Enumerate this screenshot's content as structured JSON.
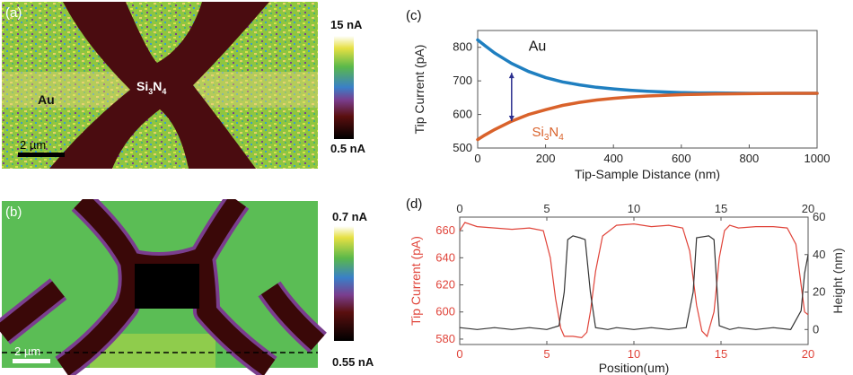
{
  "panels": {
    "a": {
      "label": "(a)",
      "material_au": "Au",
      "material_si3n4_main": "Si",
      "material_si3n4_sub3": "3",
      "material_n": "N",
      "material_si3n4_sub4": "4",
      "scale_bar": "2 µm",
      "colorbar_max": "15 nA",
      "colorbar_min": "0.5 nA"
    },
    "b": {
      "label": "(b)",
      "scale_bar": "2 µm",
      "colorbar_max": "0.7 nA",
      "colorbar_min": "0.55 nA"
    },
    "c": {
      "label": "(c)"
    },
    "d": {
      "label": "(d)"
    }
  },
  "colors": {
    "au_curve": "#1f7fc0",
    "si3n4_curve": "#d9622b",
    "current_line": "#e0443a",
    "height_line": "#333333",
    "arrow": "#2b2f8f"
  },
  "chart_data": [
    {
      "type": "line",
      "panel": "c",
      "xlabel": "Tip-Sample Distance (nm)",
      "ylabel": "Tip Current (pA)",
      "xlim": [
        0,
        1000
      ],
      "ylim": [
        500,
        850
      ],
      "xticks": [
        0,
        200,
        400,
        600,
        800,
        1000
      ],
      "yticks": [
        500,
        600,
        700,
        800
      ],
      "grid": false,
      "series": [
        {
          "name": "Au",
          "color": "#1f7fc0",
          "x": [
            0,
            20,
            50,
            100,
            150,
            200,
            250,
            300,
            350,
            400,
            450,
            500,
            550,
            600,
            650,
            700,
            800,
            900,
            1000
          ],
          "y": [
            822,
            806,
            783,
            752,
            728,
            710,
            697,
            688,
            681,
            676,
            672,
            669,
            667,
            665,
            664,
            664,
            663,
            663,
            663
          ]
        },
        {
          "name": "Si3N4",
          "color": "#d9622b",
          "x": [
            0,
            20,
            50,
            100,
            150,
            200,
            250,
            300,
            350,
            400,
            450,
            500,
            550,
            600,
            650,
            700,
            800,
            900,
            1000
          ],
          "y": [
            525,
            538,
            555,
            580,
            600,
            614,
            627,
            636,
            643,
            648,
            652,
            655,
            657,
            659,
            660,
            661,
            662,
            663,
            663
          ]
        }
      ],
      "annotations": {
        "au_label": "Au",
        "si_label_main": "Si",
        "si_label_sub3": "3",
        "si_label_n": "N",
        "si_label_sub4": "4",
        "arrow_x": 100,
        "arrow_y_top": 724,
        "arrow_y_bottom": 580
      }
    },
    {
      "type": "line",
      "panel": "d",
      "xlabel": "Position(um)",
      "ylabel_left": "Tip Current (pA)",
      "ylabel_right": "Height (nm)",
      "xlim": [
        0,
        20
      ],
      "ylim_left": [
        576,
        670
      ],
      "ylim_right": [
        -8,
        60
      ],
      "xticks": [
        0,
        5,
        10,
        15,
        20
      ],
      "yticks_left": [
        580,
        600,
        620,
        640,
        660
      ],
      "yticks_right": [
        0,
        20,
        40,
        60
      ],
      "series": [
        {
          "name": "Tip Current (pA)",
          "axis": "left",
          "color": "#e0443a",
          "x": [
            0,
            0.3,
            1,
            2,
            3,
            4,
            4.8,
            5.2,
            5.5,
            5.8,
            6.0,
            6.5,
            7.0,
            7.3,
            7.5,
            7.8,
            8.2,
            9,
            10,
            11,
            12,
            12.8,
            13.2,
            13.6,
            13.9,
            14.2,
            14.6,
            14.9,
            15.2,
            15.5,
            16,
            17,
            18,
            18.8,
            19.3,
            19.6,
            19.8,
            20
          ],
          "y": [
            660,
            666,
            663,
            662,
            661,
            662,
            660,
            640,
            610,
            588,
            582,
            582,
            581,
            585,
            600,
            630,
            656,
            664,
            665,
            663,
            664,
            662,
            645,
            605,
            586,
            582,
            600,
            640,
            660,
            664,
            662,
            663,
            663,
            662,
            650,
            620,
            600,
            598
          ]
        },
        {
          "name": "Height (nm)",
          "axis": "right",
          "color": "#333333",
          "x": [
            0,
            1,
            2,
            3,
            4,
            5,
            5.7,
            6.0,
            6.2,
            6.5,
            6.9,
            7.2,
            7.5,
            7.8,
            8.5,
            9,
            10,
            11,
            12,
            13,
            13.4,
            13.6,
            14.3,
            14.6,
            14.9,
            15.5,
            16,
            17,
            18,
            19,
            19.6,
            19.8,
            20
          ],
          "y": [
            1,
            0,
            1,
            0,
            1,
            0,
            2,
            20,
            48,
            50,
            49,
            48,
            20,
            1,
            0,
            1,
            0,
            1,
            0,
            1,
            20,
            49,
            50,
            48,
            2,
            0,
            1,
            0,
            1,
            0,
            10,
            30,
            40
          ]
        }
      ]
    }
  ]
}
